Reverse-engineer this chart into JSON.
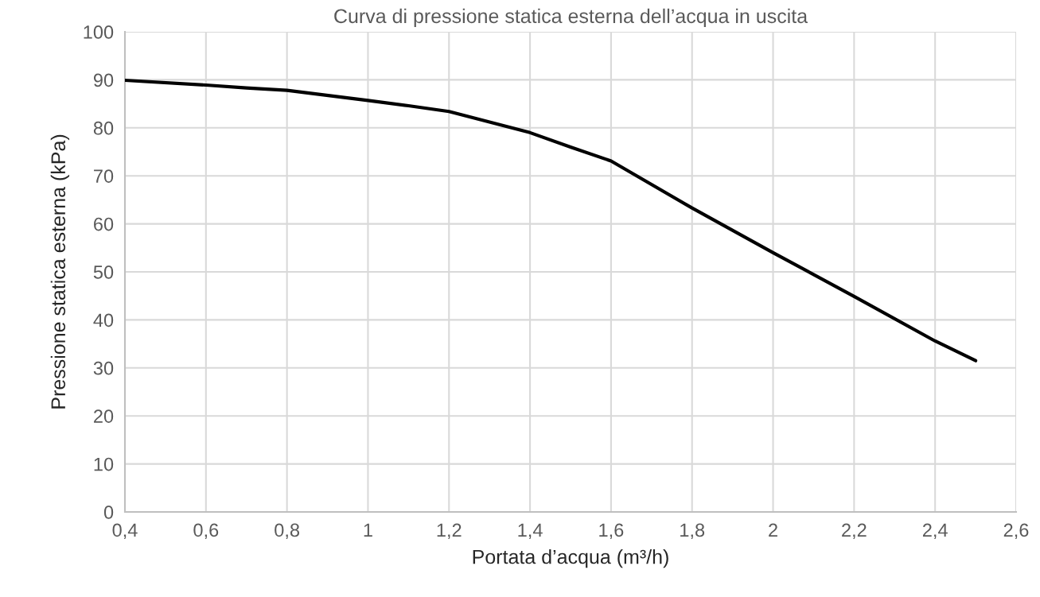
{
  "chart_data": {
    "type": "line",
    "title": "Curva di pressione statica esterna dell’acqua in uscita",
    "xlabel": "Portata d’acqua (m³/h)",
    "ylabel": "Pressione statica esterna (kPa)",
    "series": [
      {
        "color": "#000000",
        "x": [
          0.4,
          0.6,
          0.7,
          0.8,
          1.0,
          1.1,
          1.2,
          1.4,
          1.5,
          1.6,
          1.8,
          2.0,
          2.2,
          2.4,
          2.5
        ],
        "values": [
          89.9,
          88.9,
          88.3,
          87.8,
          85.7,
          84.6,
          83.4,
          79.0,
          76.0,
          73.1,
          63.3,
          54.0,
          44.9,
          35.6,
          31.5
        ]
      }
    ],
    "xlim": [
      0.4,
      2.6
    ],
    "ylim": [
      0,
      100
    ],
    "xticks": [
      {
        "value": 0.4,
        "label": "0,4"
      },
      {
        "value": 0.6,
        "label": "0,6"
      },
      {
        "value": 0.8,
        "label": "0,8"
      },
      {
        "value": 1,
        "label": "1"
      },
      {
        "value": 1.2,
        "label": "1,2"
      },
      {
        "value": 1.4,
        "label": "1,4"
      },
      {
        "value": 1.6,
        "label": "1,6"
      },
      {
        "value": 1.8,
        "label": "1,8"
      },
      {
        "value": 2,
        "label": "2"
      },
      {
        "value": 2.2,
        "label": "2,2"
      },
      {
        "value": 2.4,
        "label": "2,4"
      },
      {
        "value": 2.6,
        "label": "2,6"
      }
    ],
    "yticks": [
      0,
      10,
      20,
      30,
      40,
      50,
      60,
      70,
      80,
      90,
      100
    ],
    "grid": true,
    "marker": "none",
    "line_style": "solid"
  }
}
